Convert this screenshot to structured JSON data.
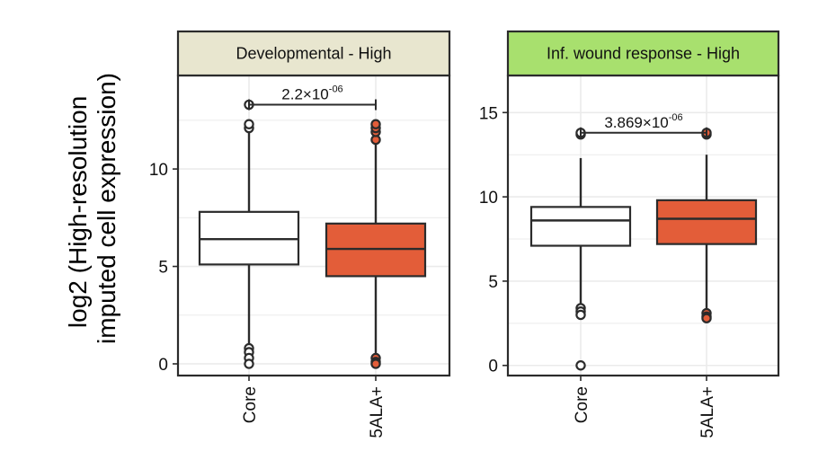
{
  "chart_data": {
    "type": "boxplot",
    "ylabel": [
      "log2 (High-resolution",
      "imputed cell expression)"
    ],
    "categories": [
      "Core",
      "5ALA+"
    ],
    "colors": {
      "Core": "#ffffff",
      "5ALA+": "#e35d39",
      "line": "#2b2b2b",
      "grid": "#ebebeb"
    },
    "panels": [
      {
        "strip": "Developmental - High",
        "strip_color": "#e8e6cf",
        "ylim": [
          -0.6,
          14.8
        ],
        "yticks": [
          0,
          5,
          10
        ],
        "boxes": [
          {
            "category": "Core",
            "q1": 5.1,
            "median": 6.4,
            "q3": 7.8,
            "lower_whisker": 0.9,
            "upper_whisker": 11.9,
            "outliers": [
              12.1,
              12.3,
              13.3,
              0.8,
              0.6,
              0.3,
              0.0
            ]
          },
          {
            "category": "5ALA+",
            "q1": 4.5,
            "median": 5.9,
            "q3": 7.2,
            "lower_whisker": 0.4,
            "upper_whisker": 11.3,
            "outliers": [
              11.5,
              11.9,
              12.1,
              12.3,
              0.3,
              0.1,
              0.0
            ]
          }
        ],
        "significance": {
          "y": 13.3,
          "mantissa": "2.2×10",
          "exponent": "-06"
        }
      },
      {
        "strip": "Inf. wound response - High",
        "strip_color": "#a8e06e",
        "ylim": [
          -0.6,
          17.2
        ],
        "yticks": [
          0,
          5,
          10,
          15
        ],
        "boxes": [
          {
            "category": "Core",
            "q1": 7.1,
            "median": 8.6,
            "q3": 9.4,
            "lower_whisker": 3.6,
            "upper_whisker": 12.3,
            "outliers": [
              13.7,
              13.8,
              3.4,
              3.2,
              3.0,
              0.0
            ]
          },
          {
            "category": "5ALA+",
            "q1": 7.2,
            "median": 8.7,
            "q3": 9.8,
            "lower_whisker": 3.3,
            "upper_whisker": 12.5,
            "outliers": [
              13.7,
              13.8,
              3.1,
              2.9,
              2.8
            ]
          }
        ],
        "significance": {
          "y": 13.8,
          "mantissa": "3.869×10",
          "exponent": "-06"
        }
      }
    ]
  }
}
